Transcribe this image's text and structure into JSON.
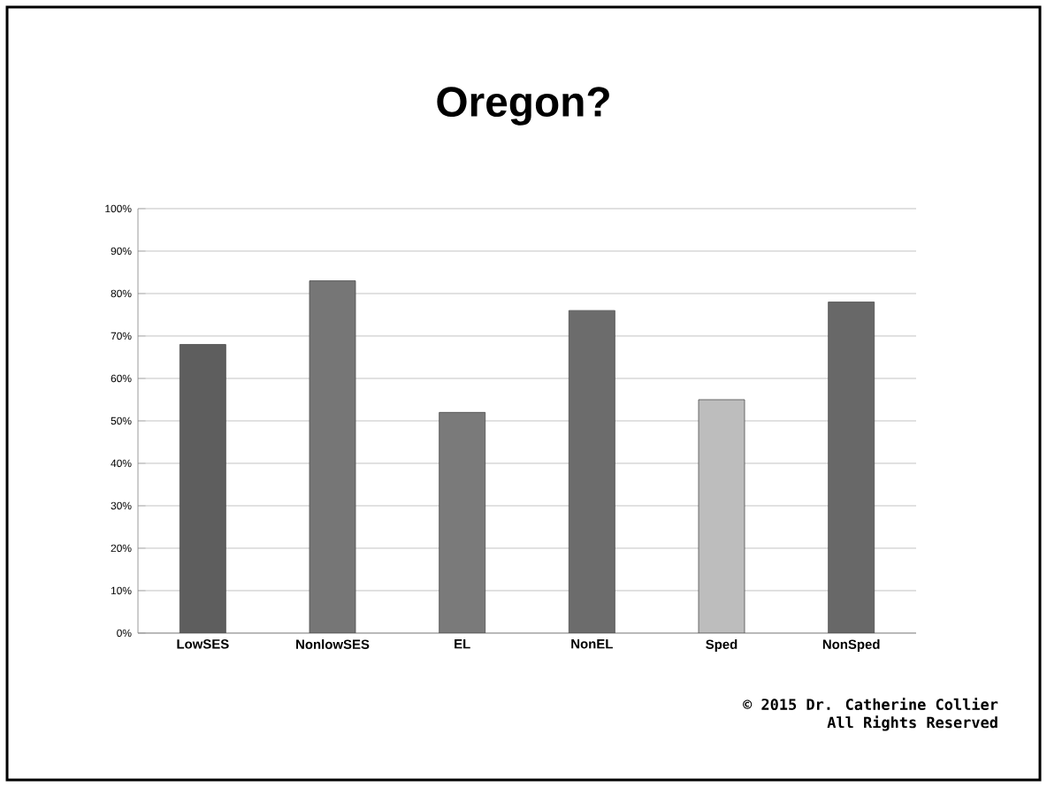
{
  "chart_data": {
    "type": "bar",
    "title": "Oregon?",
    "categories": [
      "LowSES",
      "NonlowSES",
      "EL",
      "NonEL",
      "Sped",
      "NonSped"
    ],
    "values": [
      68,
      83,
      52,
      76,
      55,
      78
    ],
    "colors": [
      "#5e5e5e",
      "#767676",
      "#7a7a7a",
      "#6c6c6c",
      "#bdbdbd",
      "#686868"
    ],
    "ylim": [
      0,
      100
    ],
    "yticks": [
      {
        "value": 0,
        "label": "0%"
      },
      {
        "value": 10,
        "label": "10%"
      },
      {
        "value": 20,
        "label": "20%"
      },
      {
        "value": 30,
        "label": "30%"
      },
      {
        "value": 40,
        "label": "40%"
      },
      {
        "value": 50,
        "label": "50%"
      },
      {
        "value": 60,
        "label": "60%"
      },
      {
        "value": 70,
        "label": "70%"
      },
      {
        "value": 80,
        "label": "80%"
      },
      {
        "value": 90,
        "label": "90%"
      },
      {
        "value": 100,
        "label": "100%"
      }
    ],
    "grid": "y",
    "annotations": [
      "© 2015 Dr. Catherine Collier",
      "All Rights Reserved"
    ]
  }
}
